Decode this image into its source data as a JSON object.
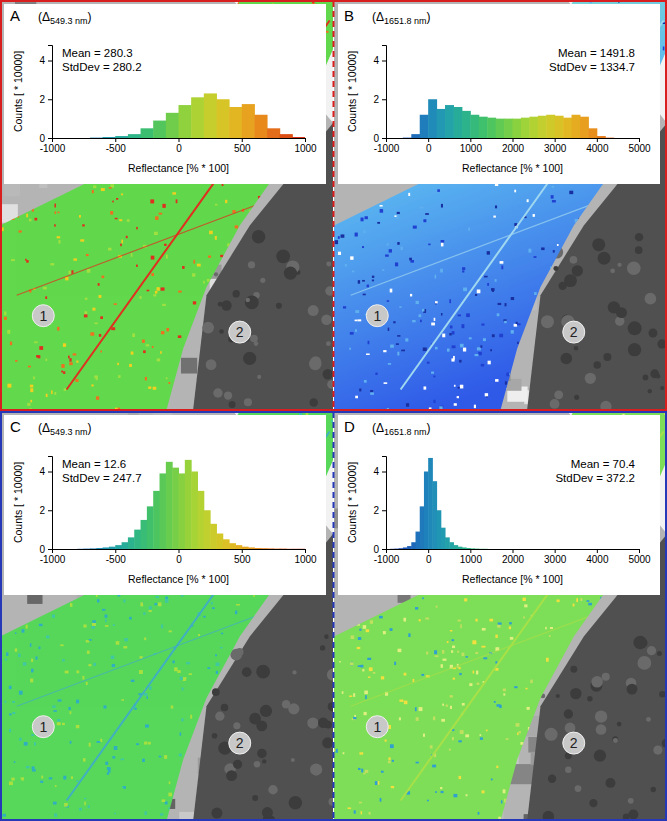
{
  "chart_data": [
    {
      "type": "histogram",
      "title": "A",
      "subtitle": "(Δ549.3 nm)",
      "x_label": "Reflectance [% * 100]",
      "y_label": "Counts [ * 10000]",
      "bins": [
        -1000,
        -900,
        -800,
        -700,
        -600,
        -500,
        -400,
        -300,
        -200,
        -100,
        0,
        100,
        200,
        300,
        400,
        500,
        600,
        700,
        800,
        900,
        1000
      ],
      "values": [
        0,
        0,
        0,
        0.02,
        0.05,
        0.1,
        0.2,
        0.5,
        0.9,
        1.3,
        1.7,
        2.1,
        2.3,
        2.0,
        1.6,
        1.75,
        1.2,
        0.5,
        0.2,
        0.05
      ],
      "xlim": [
        -1000,
        1000
      ],
      "xticks": [
        -1000,
        -500,
        0,
        500,
        1000
      ],
      "ylim": [
        0,
        4.8
      ],
      "yticks": [
        0,
        2,
        4
      ],
      "annotations": [
        "Mean = 280.3",
        "StdDev = 280.2",
        "1",
        "2"
      ]
    },
    {
      "type": "histogram",
      "title": "B",
      "subtitle": "(Δ1651.8 nm)",
      "x_label": "Reflectance [% * 100]",
      "y_label": "Counts [ * 10000]",
      "bins": [
        -1000,
        -800,
        -600,
        -400,
        -200,
        0,
        200,
        400,
        600,
        800,
        1000,
        1200,
        1400,
        1600,
        1800,
        2000,
        2200,
        2400,
        2600,
        2800,
        3000,
        3200,
        3400,
        3600,
        3800,
        4000,
        4200,
        4400,
        4600,
        4800,
        5000
      ],
      "values": [
        0,
        0,
        0.02,
        0.2,
        1.2,
        2.0,
        1.5,
        1.7,
        1.6,
        1.4,
        1.2,
        1.1,
        1.05,
        1.0,
        1.0,
        1.0,
        1.05,
        1.1,
        1.15,
        1.2,
        1.15,
        1.05,
        1.2,
        1.1,
        0.5,
        0.1,
        0.02,
        0,
        0,
        0
      ],
      "xlim": [
        -1000,
        5000
      ],
      "xticks": [
        -1000,
        0,
        1000,
        2000,
        3000,
        4000,
        5000
      ],
      "ylim": [
        0,
        4.8
      ],
      "yticks": [
        0,
        2,
        4
      ],
      "annotations": [
        "Mean = 1491.8",
        "StdDev = 1334.7",
        "1",
        "2"
      ]
    },
    {
      "type": "histogram",
      "title": "C",
      "subtitle": "(Δ549.3 nm)",
      "x_label": "Reflectance [% * 100]",
      "y_label": "Counts [ * 10000]",
      "bins": [
        -1000,
        -950,
        -900,
        -850,
        -800,
        -750,
        -700,
        -650,
        -600,
        -550,
        -500,
        -450,
        -400,
        -350,
        -300,
        -250,
        -200,
        -150,
        -100,
        -50,
        0,
        50,
        100,
        150,
        200,
        250,
        300,
        350,
        400,
        450,
        500,
        550,
        600,
        650,
        700,
        750,
        800,
        850,
        900,
        950,
        1000
      ],
      "values": [
        0,
        0,
        0,
        0,
        0.01,
        0.02,
        0.03,
        0.05,
        0.08,
        0.12,
        0.2,
        0.35,
        0.6,
        1.0,
        1.5,
        2.2,
        3.0,
        3.9,
        4.5,
        4.2,
        3.9,
        4.6,
        4.0,
        3.0,
        2.0,
        1.3,
        0.8,
        0.5,
        0.3,
        0.2,
        0.12,
        0.08,
        0.05,
        0.04,
        0.03,
        0.02,
        0.02,
        0.01,
        0.01,
        0.01
      ],
      "xlim": [
        -1000,
        1000
      ],
      "xticks": [
        -1000,
        -500,
        0,
        500,
        1000
      ],
      "ylim": [
        0,
        4.8
      ],
      "yticks": [
        0,
        2,
        4
      ],
      "annotations": [
        "Mean = 12.6",
        "StdDev = 247.7",
        "1",
        "2"
      ]
    },
    {
      "type": "histogram",
      "title": "D",
      "subtitle": "(Δ1651.8 nm)",
      "x_label": "Reflectance [% * 100]",
      "y_label": "Counts [ * 10000]",
      "bins": [
        -1000,
        -900,
        -800,
        -700,
        -600,
        -500,
        -400,
        -300,
        -200,
        -100,
        0,
        100,
        200,
        300,
        400,
        500,
        600,
        700,
        800,
        900,
        1000,
        1100,
        1200,
        1300,
        1400,
        1500
      ],
      "values": [
        0,
        0.01,
        0.02,
        0.04,
        0.08,
        0.15,
        0.35,
        0.9,
        2.2,
        4.0,
        4.7,
        3.5,
        2.0,
        1.1,
        0.6,
        0.35,
        0.2,
        0.12,
        0.08,
        0.05,
        0.03,
        0.02,
        0.01,
        0.01,
        0
      ],
      "xlim": [
        -1000,
        5000
      ],
      "xticks": [
        -1000,
        0,
        1000,
        2000,
        3000,
        4000,
        5000
      ],
      "ylim": [
        0,
        4.8
      ],
      "yticks": [
        0,
        2,
        4
      ],
      "annotations": [
        "Mean = 70.4",
        "StdDev = 372.2",
        "1",
        "2"
      ]
    }
  ]
}
